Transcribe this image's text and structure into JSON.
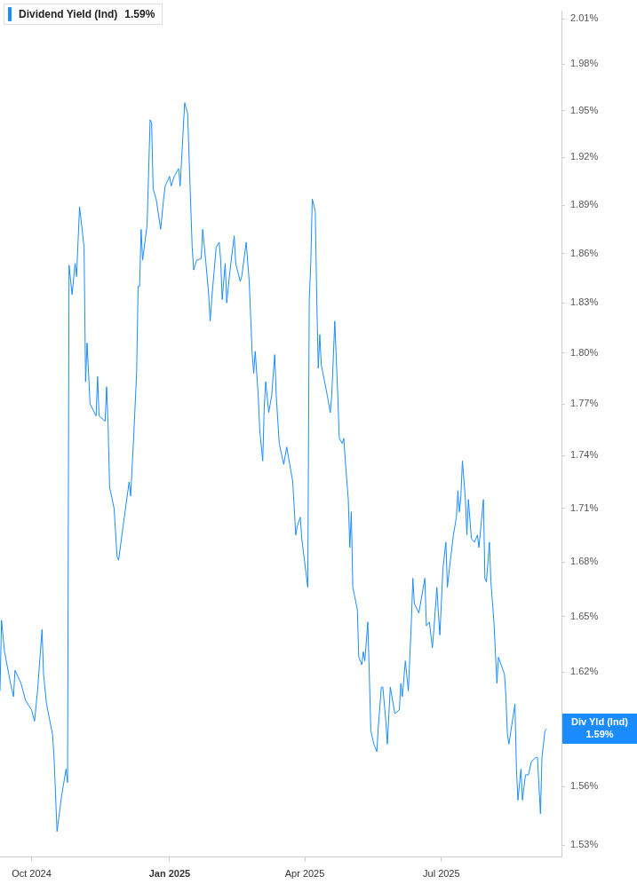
{
  "chart_data": {
    "type": "line",
    "log": "y",
    "legend": "top left",
    "marker": "none",
    "line_style": "solid",
    "xlim": [
      "2024-09-10",
      "2025-09-19"
    ],
    "xticks": [
      {
        "value": "2024-10-01",
        "label": "Oct 2024"
      },
      {
        "value": "2025-01-01",
        "label": "Jan 2025"
      },
      {
        "value": "2025-04-01",
        "label": "Apr 2025"
      },
      {
        "value": "2025-07-01",
        "label": "Jul 2025"
      }
    ],
    "ylim": [
      1.524,
      2.015
    ],
    "yticks": [
      {
        "value": 1.53,
        "label": "1.53%"
      },
      {
        "value": 1.56,
        "label": "1.56%"
      },
      {
        "value": 1.59,
        "label": null
      },
      {
        "value": 1.62,
        "label": "1.62%"
      },
      {
        "value": 1.65,
        "label": "1.65%"
      },
      {
        "value": 1.68,
        "label": "1.68%"
      },
      {
        "value": 1.71,
        "label": "1.71%"
      },
      {
        "value": 1.74,
        "label": "1.74%"
      },
      {
        "value": 1.77,
        "label": "1.77%"
      },
      {
        "value": 1.8,
        "label": "1.80%"
      },
      {
        "value": 1.83,
        "label": "1.83%"
      },
      {
        "value": 1.86,
        "label": "1.86%"
      },
      {
        "value": 1.89,
        "label": "1.89%"
      },
      {
        "value": 1.92,
        "label": "1.92%"
      },
      {
        "value": 1.95,
        "label": "1.95%"
      },
      {
        "value": 1.98,
        "label": "1.98%"
      },
      {
        "value": 2.01,
        "label": "2.01%"
      }
    ],
    "annotations": [
      "1.59%",
      "Div Yld (Ind)",
      "1.59%"
    ],
    "x": [
      "2024-09-10",
      "2024-09-11",
      "2024-09-13",
      "2024-09-17",
      "2024-09-19",
      "2024-09-20",
      "2024-09-24",
      "2024-09-27",
      "2024-10-01",
      "2024-10-03",
      "2024-10-05",
      "2024-10-08",
      "2024-10-09",
      "2024-10-11",
      "2024-10-15",
      "2024-10-16",
      "2024-10-18",
      "2024-10-21",
      "2024-10-24",
      "2024-10-25",
      "2024-10-26",
      "2024-10-28",
      "2024-10-30",
      "2024-10-31",
      "2024-11-02",
      "2024-11-05",
      "2024-11-06",
      "2024-11-07",
      "2024-11-09",
      "2024-11-13",
      "2024-11-14",
      "2024-11-15",
      "2024-11-19",
      "2024-11-20",
      "2024-11-21",
      "2024-11-22",
      "2024-11-25",
      "2024-11-27",
      "2024-11-28",
      "2024-12-01",
      "2024-12-05",
      "2024-12-06",
      "2024-12-08",
      "2024-12-10",
      "2024-12-11",
      "2024-12-12",
      "2024-12-13",
      "2024-12-14",
      "2024-12-17",
      "2024-12-19",
      "2024-12-20",
      "2024-12-21",
      "2024-12-23",
      "2024-12-26",
      "2024-12-28",
      "2024-12-29",
      "2025-01-01",
      "2025-01-02",
      "2025-01-04",
      "2025-01-07",
      "2025-01-08",
      "2025-01-09",
      "2025-01-11",
      "2025-01-13",
      "2025-01-14",
      "2025-01-16",
      "2025-01-17",
      "2025-01-19",
      "2025-01-22",
      "2025-01-23",
      "2025-01-25",
      "2025-01-27",
      "2025-01-28",
      "2025-01-29",
      "2025-02-01",
      "2025-02-03",
      "2025-02-04",
      "2025-02-05",
      "2025-02-07",
      "2025-02-08",
      "2025-02-10",
      "2025-02-13",
      "2025-02-14",
      "2025-02-17",
      "2025-02-18",
      "2025-02-21",
      "2025-02-23",
      "2025-02-25",
      "2025-02-26",
      "2025-02-27",
      "2025-03-01",
      "2025-03-02",
      "2025-03-04",
      "2025-03-05",
      "2025-03-06",
      "2025-03-08",
      "2025-03-10",
      "2025-03-12",
      "2025-03-13",
      "2025-03-15",
      "2025-03-18",
      "2025-03-20",
      "2025-03-22",
      "2025-03-24",
      "2025-03-26",
      "2025-03-27",
      "2025-03-29",
      "2025-03-30",
      "2025-04-03",
      "2025-04-04",
      "2025-04-05",
      "2025-04-06",
      "2025-04-08",
      "2025-04-09",
      "2025-04-10",
      "2025-04-11",
      "2025-04-12",
      "2025-04-16",
      "2025-04-18",
      "2025-04-19",
      "2025-04-21",
      "2025-04-23",
      "2025-04-24",
      "2025-04-26",
      "2025-04-27",
      "2025-04-28",
      "2025-04-30",
      "2025-05-01",
      "2025-05-02",
      "2025-05-03",
      "2025-05-06",
      "2025-05-07",
      "2025-05-09",
      "2025-05-10",
      "2025-05-11",
      "2025-05-13",
      "2025-05-14",
      "2025-05-15",
      "2025-05-17",
      "2025-05-19",
      "2025-05-20",
      "2025-05-22",
      "2025-05-23",
      "2025-05-25",
      "2025-05-26",
      "2025-05-28",
      "2025-05-31",
      "2025-06-03",
      "2025-06-04",
      "2025-06-05",
      "2025-06-07",
      "2025-06-09",
      "2025-06-11",
      "2025-06-12",
      "2025-06-13",
      "2025-06-16",
      "2025-06-20",
      "2025-06-21",
      "2025-06-23",
      "2025-06-25",
      "2025-06-26",
      "2025-06-28",
      "2025-06-29",
      "2025-06-30",
      "2025-07-02",
      "2025-07-04",
      "2025-07-05",
      "2025-07-07",
      "2025-07-09",
      "2025-07-11",
      "2025-07-12",
      "2025-07-13",
      "2025-07-14",
      "2025-07-15",
      "2025-07-17",
      "2025-07-18",
      "2025-07-19",
      "2025-07-21",
      "2025-07-23",
      "2025-07-25",
      "2025-07-26",
      "2025-07-29",
      "2025-07-30",
      "2025-07-31",
      "2025-08-02",
      "2025-08-03",
      "2025-08-05",
      "2025-08-07",
      "2025-08-08",
      "2025-08-12",
      "2025-08-13",
      "2025-08-14",
      "2025-08-15",
      "2025-08-19",
      "2025-08-20",
      "2025-08-21",
      "2025-08-23",
      "2025-08-24",
      "2025-08-26",
      "2025-08-28",
      "2025-08-30",
      "2025-09-02",
      "2025-09-03",
      "2025-09-05",
      "2025-09-06",
      "2025-09-08",
      "2025-09-09"
    ],
    "series": [
      {
        "name": "Dividend Yield (Ind)",
        "color": "#1a8cff",
        "values": [
          1.61,
          1.648,
          1.631,
          1.614,
          1.607,
          1.621,
          1.614,
          1.605,
          1.6,
          1.594,
          1.61,
          1.643,
          1.619,
          1.603,
          1.587,
          1.575,
          1.537,
          1.555,
          1.569,
          1.562,
          1.853,
          1.835,
          1.854,
          1.846,
          1.889,
          1.864,
          1.783,
          1.806,
          1.77,
          1.763,
          1.786,
          1.763,
          1.76,
          1.78,
          1.758,
          1.722,
          1.71,
          1.683,
          1.681,
          1.7,
          1.725,
          1.717,
          1.75,
          1.788,
          1.84,
          1.84,
          1.875,
          1.856,
          1.878,
          1.944,
          1.942,
          1.9,
          1.894,
          1.875,
          1.894,
          1.902,
          1.908,
          1.902,
          1.908,
          1.913,
          1.902,
          1.919,
          1.955,
          1.948,
          1.919,
          1.864,
          1.85,
          1.856,
          1.857,
          1.875,
          1.856,
          1.835,
          1.819,
          1.832,
          1.864,
          1.867,
          1.856,
          1.832,
          1.854,
          1.83,
          1.848,
          1.871,
          1.854,
          1.843,
          1.846,
          1.867,
          1.843,
          1.799,
          1.788,
          1.801,
          1.775,
          1.755,
          1.737,
          1.768,
          1.783,
          1.765,
          1.775,
          1.799,
          1.775,
          1.747,
          1.735,
          1.745,
          1.735,
          1.725,
          1.695,
          1.7,
          1.705,
          1.693,
          1.666,
          1.832,
          1.854,
          1.894,
          1.886,
          1.832,
          1.791,
          1.811,
          1.793,
          1.775,
          1.765,
          1.775,
          1.819,
          1.775,
          1.75,
          1.747,
          1.75,
          1.737,
          1.715,
          1.688,
          1.708,
          1.666,
          1.654,
          1.628,
          1.624,
          1.631,
          1.626,
          1.647,
          1.619,
          1.589,
          1.582,
          1.578,
          1.591,
          1.612,
          1.612,
          1.594,
          1.582,
          1.612,
          1.598,
          1.6,
          1.614,
          1.607,
          1.626,
          1.61,
          1.647,
          1.671,
          1.657,
          1.652,
          1.671,
          1.645,
          1.647,
          1.633,
          1.643,
          1.666,
          1.652,
          1.64,
          1.676,
          1.691,
          1.666,
          1.681,
          1.695,
          1.705,
          1.72,
          1.708,
          1.717,
          1.737,
          1.715,
          1.695,
          1.715,
          1.693,
          1.691,
          1.695,
          1.688,
          1.715,
          1.671,
          1.669,
          1.691,
          1.669,
          1.647,
          1.614,
          1.628,
          1.619,
          1.607,
          1.587,
          1.582,
          1.603,
          1.569,
          1.553,
          1.569,
          1.553,
          1.566,
          1.566,
          1.573,
          1.575,
          1.575,
          1.546,
          1.575,
          1.589,
          1.59
        ]
      }
    ]
  }
}
